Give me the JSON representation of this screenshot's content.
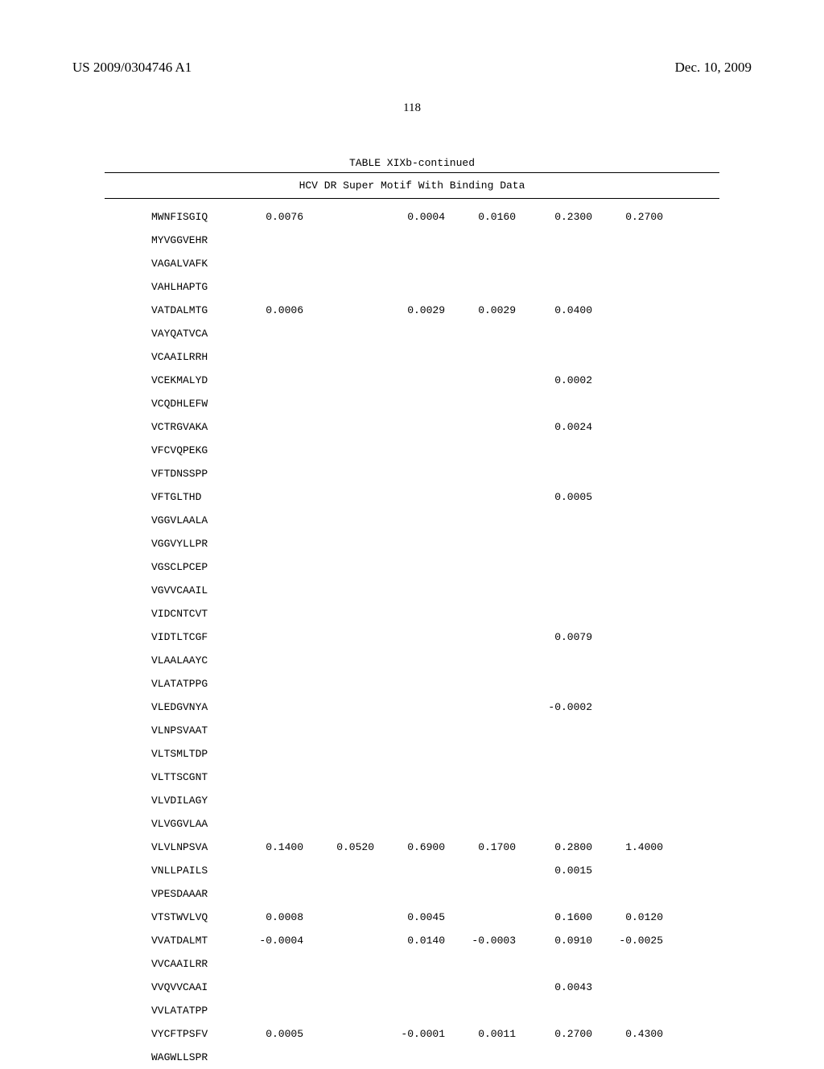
{
  "header": {
    "publication_number": "US 2009/0304746 A1",
    "publication_date": "Dec. 10, 2009",
    "page_number": "118"
  },
  "table": {
    "title": "TABLE XIXb-continued",
    "subtitle": "HCV DR Super Motif With Binding Data",
    "rows": [
      {
        "seq": "MWNFISGIQ",
        "v1": "0.0076",
        "v2": "",
        "v3": "0.0004",
        "v4": "0.0160",
        "v5": "0.2300",
        "v6": "0.2700"
      },
      {
        "seq": "MYVGGVEHR",
        "v1": "",
        "v2": "",
        "v3": "",
        "v4": "",
        "v5": "",
        "v6": ""
      },
      {
        "seq": "VAGALVAFK",
        "v1": "",
        "v2": "",
        "v3": "",
        "v4": "",
        "v5": "",
        "v6": ""
      },
      {
        "seq": "VAHLHAPTG",
        "v1": "",
        "v2": "",
        "v3": "",
        "v4": "",
        "v5": "",
        "v6": ""
      },
      {
        "seq": "VATDALMTG",
        "v1": "0.0006",
        "v2": "",
        "v3": "0.0029",
        "v4": "0.0029",
        "v5": "0.0400",
        "v6": ""
      },
      {
        "seq": "VAYQATVCA",
        "v1": "",
        "v2": "",
        "v3": "",
        "v4": "",
        "v5": "",
        "v6": ""
      },
      {
        "seq": "VCAAILRRH",
        "v1": "",
        "v2": "",
        "v3": "",
        "v4": "",
        "v5": "",
        "v6": ""
      },
      {
        "seq": "VCEKMALYD",
        "v1": "",
        "v2": "",
        "v3": "",
        "v4": "",
        "v5": "0.0002",
        "v6": ""
      },
      {
        "seq": "VCQDHLEFW",
        "v1": "",
        "v2": "",
        "v3": "",
        "v4": "",
        "v5": "",
        "v6": ""
      },
      {
        "seq": "VCTRGVAKA",
        "v1": "",
        "v2": "",
        "v3": "",
        "v4": "",
        "v5": "0.0024",
        "v6": ""
      },
      {
        "seq": "VFCVQPEKG",
        "v1": "",
        "v2": "",
        "v3": "",
        "v4": "",
        "v5": "",
        "v6": ""
      },
      {
        "seq": "VFTDNSSPP",
        "v1": "",
        "v2": "",
        "v3": "",
        "v4": "",
        "v5": "",
        "v6": ""
      },
      {
        "seq": "VFTGLTHD",
        "v1": "",
        "v2": "",
        "v3": "",
        "v4": "",
        "v5": "0.0005",
        "v6": ""
      },
      {
        "seq": "VGGVLAALA",
        "v1": "",
        "v2": "",
        "v3": "",
        "v4": "",
        "v5": "",
        "v6": ""
      },
      {
        "seq": "VGGVYLLPR",
        "v1": "",
        "v2": "",
        "v3": "",
        "v4": "",
        "v5": "",
        "v6": ""
      },
      {
        "seq": "VGSCLPCEP",
        "v1": "",
        "v2": "",
        "v3": "",
        "v4": "",
        "v5": "",
        "v6": ""
      },
      {
        "seq": "VGVVCAAIL",
        "v1": "",
        "v2": "",
        "v3": "",
        "v4": "",
        "v5": "",
        "v6": ""
      },
      {
        "seq": "VIDCNTCVT",
        "v1": "",
        "v2": "",
        "v3": "",
        "v4": "",
        "v5": "",
        "v6": ""
      },
      {
        "seq": "VIDTLTCGF",
        "v1": "",
        "v2": "",
        "v3": "",
        "v4": "",
        "v5": "0.0079",
        "v6": ""
      },
      {
        "seq": "VLAALAAYC",
        "v1": "",
        "v2": "",
        "v3": "",
        "v4": "",
        "v5": "",
        "v6": ""
      },
      {
        "seq": "VLATATPPG",
        "v1": "",
        "v2": "",
        "v3": "",
        "v4": "",
        "v5": "",
        "v6": ""
      },
      {
        "seq": "VLEDGVNYA",
        "v1": "",
        "v2": "",
        "v3": "",
        "v4": "",
        "v5": "-0.0002",
        "v6": ""
      },
      {
        "seq": "VLNPSVAAT",
        "v1": "",
        "v2": "",
        "v3": "",
        "v4": "",
        "v5": "",
        "v6": ""
      },
      {
        "seq": "VLTSMLTDP",
        "v1": "",
        "v2": "",
        "v3": "",
        "v4": "",
        "v5": "",
        "v6": ""
      },
      {
        "seq": "VLTTSCGNT",
        "v1": "",
        "v2": "",
        "v3": "",
        "v4": "",
        "v5": "",
        "v6": ""
      },
      {
        "seq": "VLVDILAGY",
        "v1": "",
        "v2": "",
        "v3": "",
        "v4": "",
        "v5": "",
        "v6": ""
      },
      {
        "seq": "VLVGGVLAA",
        "v1": "",
        "v2": "",
        "v3": "",
        "v4": "",
        "v5": "",
        "v6": ""
      },
      {
        "seq": "VLVLNPSVA",
        "v1": "0.1400",
        "v2": "0.0520",
        "v3": "0.6900",
        "v4": "0.1700",
        "v5": "0.2800",
        "v6": "1.4000"
      },
      {
        "seq": "VNLLPAILS",
        "v1": "",
        "v2": "",
        "v3": "",
        "v4": "",
        "v5": "0.0015",
        "v6": ""
      },
      {
        "seq": "VPESDAAAR",
        "v1": "",
        "v2": "",
        "v3": "",
        "v4": "",
        "v5": "",
        "v6": ""
      },
      {
        "seq": "VTSTWVLVQ",
        "v1": "0.0008",
        "v2": "",
        "v3": "0.0045",
        "v4": "",
        "v5": "0.1600",
        "v6": "0.0120"
      },
      {
        "seq": "VVATDALMT",
        "v1": "-0.0004",
        "v2": "",
        "v3": "0.0140",
        "v4": "-0.0003",
        "v5": "0.0910",
        "v6": "-0.0025"
      },
      {
        "seq": "VVCAAILRR",
        "v1": "",
        "v2": "",
        "v3": "",
        "v4": "",
        "v5": "",
        "v6": ""
      },
      {
        "seq": "VVQVVCAAI",
        "v1": "",
        "v2": "",
        "v3": "",
        "v4": "",
        "v5": "0.0043",
        "v6": ""
      },
      {
        "seq": "VVLATATPP",
        "v1": "",
        "v2": "",
        "v3": "",
        "v4": "",
        "v5": "",
        "v6": ""
      },
      {
        "seq": "VYCFTPSFV",
        "v1": "0.0005",
        "v2": "",
        "v3": "-0.0001",
        "v4": "0.0011",
        "v5": "0.2700",
        "v6": "0.4300"
      },
      {
        "seq": "WAGWLLSPR",
        "v1": "",
        "v2": "",
        "v3": "",
        "v4": "",
        "v5": "",
        "v6": ""
      }
    ],
    "styling": {
      "font_family": "Courier New",
      "font_size": 13,
      "text_color": "#000000",
      "background_color": "#ffffff",
      "border_color": "#000000",
      "row_padding": 8
    }
  }
}
